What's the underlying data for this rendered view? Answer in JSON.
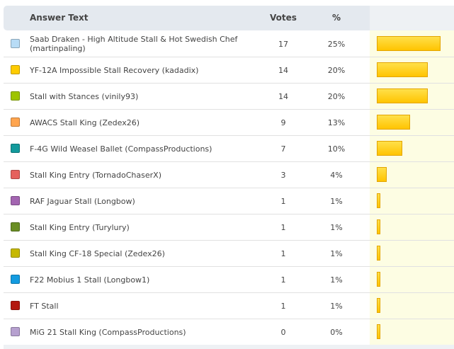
{
  "header": {
    "answer_label": "Answer Text",
    "votes_label": "Votes",
    "pct_label": "%"
  },
  "rows": [
    {
      "answer": "Saab Draken - High Altitude Stall & Hot Swedish Chef (martinpaling)",
      "votes": "17",
      "pct": "25%",
      "share": 0.25,
      "color": "#b8dcf6"
    },
    {
      "answer": "YF-12A Impossible Stall Recovery (kadadix)",
      "votes": "14",
      "pct": "20%",
      "share": 0.2,
      "color": "#ffcc00"
    },
    {
      "answer": "Stall with Stances (vinily93)",
      "votes": "14",
      "pct": "20%",
      "share": 0.2,
      "color": "#9ec400"
    },
    {
      "answer": "AWACS Stall King (Zedex26)",
      "votes": "9",
      "pct": "13%",
      "share": 0.13,
      "color": "#ffa54f"
    },
    {
      "answer": "F-4G Wild Weasel Ballet (CompassProductions)",
      "votes": "7",
      "pct": "10%",
      "share": 0.1,
      "color": "#139a9c"
    },
    {
      "answer": "Stall King Entry (TornadoChaserX)",
      "votes": "3",
      "pct": "4%",
      "share": 0.04,
      "color": "#e5615d"
    },
    {
      "answer": "RAF Jaguar Stall (Longbow)",
      "votes": "1",
      "pct": "1%",
      "share": 0.01,
      "color": "#a365b1"
    },
    {
      "answer": "Stall King Entry (Turylury)",
      "votes": "1",
      "pct": "1%",
      "share": 0.01,
      "color": "#6a8e24"
    },
    {
      "answer": "Stall King CF-18 Special (Zedex26)",
      "votes": "1",
      "pct": "1%",
      "share": 0.01,
      "color": "#c6b800"
    },
    {
      "answer": "F22 Mobius 1 Stall (Longbow1)",
      "votes": "1",
      "pct": "1%",
      "share": 0.01,
      "color": "#139be0"
    },
    {
      "answer": "FT Stall",
      "votes": "1",
      "pct": "1%",
      "share": 0.01,
      "color": "#b3170e"
    },
    {
      "answer": "MiG 21 Stall King (CompassProductions)",
      "votes": "0",
      "pct": "0%",
      "share": 0.0,
      "color": "#b6a0cf"
    }
  ]
}
